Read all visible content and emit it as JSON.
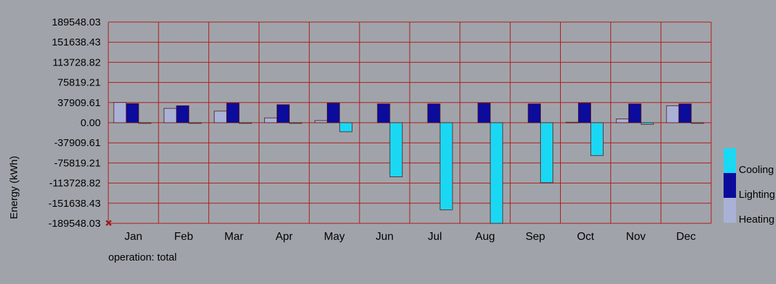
{
  "chart_data": {
    "type": "bar",
    "ylabel": "Energy (kWh)",
    "footer": "operation: total",
    "ylim": [
      -189548.03,
      189548.03
    ],
    "yticks": [
      "189548.03",
      "151638.43",
      "113728.82",
      "75819.21",
      "37909.61",
      "0.00",
      "-37909.61",
      "-75819.21",
      "-113728.82",
      "-151638.43",
      "-189548.03"
    ],
    "categories": [
      "Jan",
      "Feb",
      "Mar",
      "Apr",
      "May",
      "Jun",
      "Jul",
      "Aug",
      "Sep",
      "Oct",
      "Nov",
      "Dec"
    ],
    "series": [
      {
        "name": "Heating",
        "color": "#a9b2d6",
        "values": [
          38000,
          27000,
          22000,
          9000,
          4000,
          0,
          0,
          0,
          0,
          1000,
          7000,
          32000
        ]
      },
      {
        "name": "Lighting",
        "color": "#0b0b9c",
        "values": [
          36000,
          32000,
          37000,
          34000,
          37000,
          35500,
          35500,
          37000,
          35500,
          37000,
          35500,
          35500
        ]
      },
      {
        "name": "Cooling",
        "color": "#1ad8f4",
        "values": [
          -1000,
          -500,
          -1000,
          -500,
          -17000,
          -102000,
          -164000,
          -189548,
          -113000,
          -62000,
          -3000,
          -1000
        ]
      }
    ],
    "legend": [
      {
        "name": "Cooling",
        "color": "#1ad8f4"
      },
      {
        "name": "Lighting",
        "color": "#0b0b9c"
      },
      {
        "name": "Heating",
        "color": "#a9b2d6"
      }
    ],
    "grid": true,
    "grid_color": "#b01818",
    "marker_color": "#a01a1a"
  }
}
